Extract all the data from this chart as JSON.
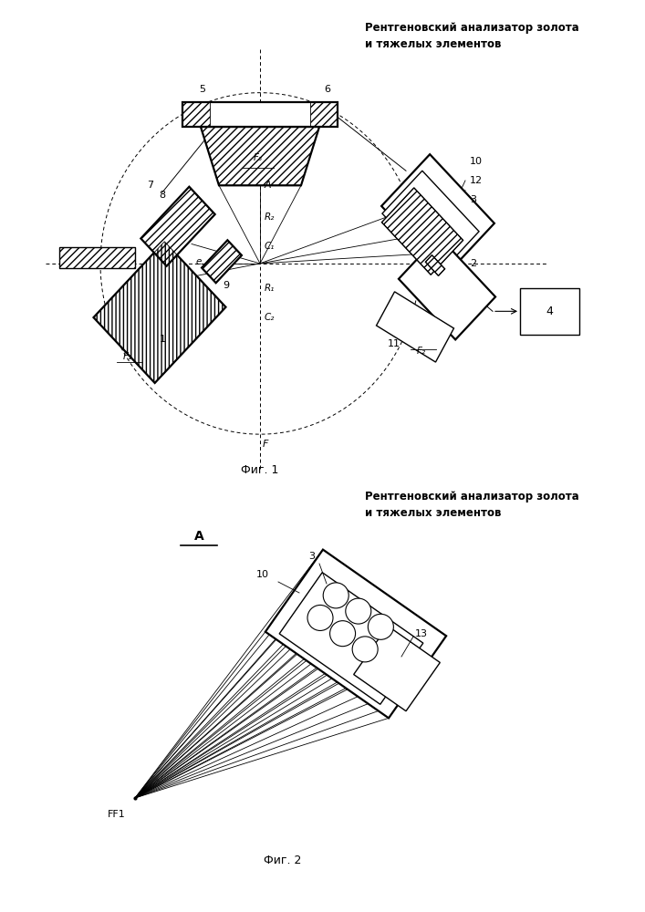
{
  "title": "Рентгеновский анализатор золота\nи тяжелых элементов",
  "fig1_caption": "Фиг. 1",
  "fig2_caption": "Фиг. 2",
  "background_color": "#ffffff",
  "line_color": "#000000",
  "lw": 1.0,
  "lw2": 1.6
}
